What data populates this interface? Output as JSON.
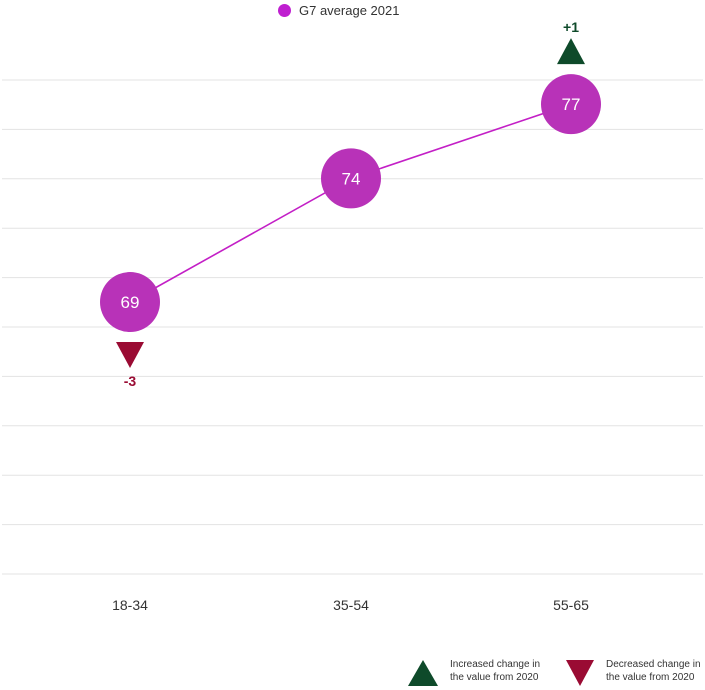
{
  "legend": {
    "series_label": "G7 average 2021",
    "increase_label_1": "Increased change in",
    "increase_label_2": "the value from 2020",
    "decrease_label_1": "Decreased change in",
    "decrease_label_2": "the value from 2020"
  },
  "colors": {
    "series": "#b832b8",
    "legend_dot": "#bf1fd0",
    "line": "#c31fc6",
    "increase": "#0e4a2a",
    "decrease": "#9a0b33",
    "grid": "#e3e3e3"
  },
  "chart_data": {
    "type": "line",
    "categories": [
      "18-34",
      "35-54",
      "55-65"
    ],
    "series": [
      {
        "name": "G7 average 2021",
        "values": [
          69,
          74,
          77
        ]
      }
    ],
    "changes_from_2020": [
      {
        "category": "18-34",
        "label": "-3",
        "direction": "down"
      },
      {
        "category": "55-65",
        "label": "+1",
        "direction": "up"
      }
    ],
    "ylim": [
      58,
      80
    ],
    "grid": true,
    "legend_position": "top",
    "title": "",
    "xlabel": "",
    "ylabel": ""
  }
}
